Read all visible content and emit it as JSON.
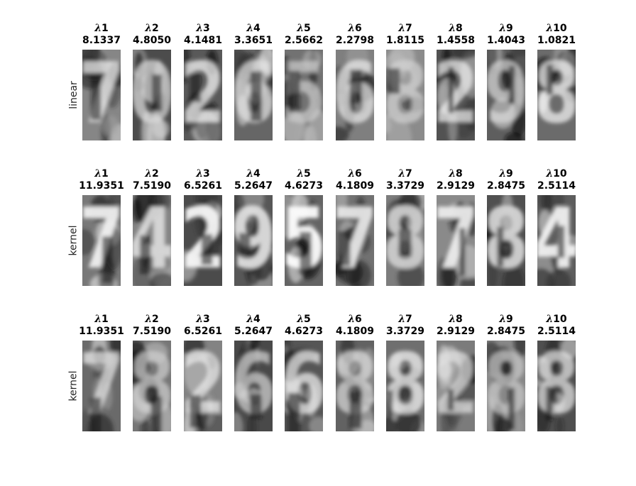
{
  "rows": [
    {
      "label": "linear",
      "panels": [
        {
          "symbol": "λ",
          "index": "1",
          "value": "8.1337",
          "digit": "7"
        },
        {
          "symbol": "λ",
          "index": "2",
          "value": "4.8050",
          "digit": "0"
        },
        {
          "symbol": "λ",
          "index": "3",
          "value": "4.1481",
          "digit": "2"
        },
        {
          "symbol": "λ",
          "index": "4",
          "value": "3.3651",
          "digit": "6"
        },
        {
          "symbol": "λ",
          "index": "5",
          "value": "2.5662",
          "digit": "5"
        },
        {
          "symbol": "λ",
          "index": "6",
          "value": "2.2798",
          "digit": "6"
        },
        {
          "symbol": "λ",
          "index": "7",
          "value": "1.8115",
          "digit": "8"
        },
        {
          "symbol": "λ",
          "index": "8",
          "value": "1.4558",
          "digit": "2"
        },
        {
          "symbol": "λ",
          "index": "9",
          "value": "1.4043",
          "digit": "9"
        },
        {
          "symbol": "λ",
          "index": "10",
          "value": "1.0821",
          "digit": "8"
        }
      ]
    },
    {
      "label": "kernel",
      "panels": [
        {
          "symbol": "λ",
          "index": "1",
          "value": "11.9351",
          "digit": "7"
        },
        {
          "symbol": "λ",
          "index": "2",
          "value": "7.5190",
          "digit": "4"
        },
        {
          "symbol": "λ",
          "index": "3",
          "value": "6.5261",
          "digit": "2"
        },
        {
          "symbol": "λ",
          "index": "4",
          "value": "5.2647",
          "digit": "9"
        },
        {
          "symbol": "λ",
          "index": "5",
          "value": "4.6273",
          "digit": "5"
        },
        {
          "symbol": "λ",
          "index": "6",
          "value": "4.1809",
          "digit": "7"
        },
        {
          "symbol": "λ",
          "index": "7",
          "value": "3.3729",
          "digit": "8"
        },
        {
          "symbol": "λ",
          "index": "8",
          "value": "2.9129",
          "digit": "7"
        },
        {
          "symbol": "λ",
          "index": "9",
          "value": "2.8475",
          "digit": "8"
        },
        {
          "symbol": "λ",
          "index": "10",
          "value": "2.5114",
          "digit": "4"
        }
      ]
    },
    {
      "label": "kernel",
      "panels": [
        {
          "symbol": "λ",
          "index": "1",
          "value": "11.9351",
          "digit": "7"
        },
        {
          "symbol": "λ",
          "index": "2",
          "value": "7.5190",
          "digit": "8"
        },
        {
          "symbol": "λ",
          "index": "3",
          "value": "6.5261",
          "digit": "2"
        },
        {
          "symbol": "λ",
          "index": "4",
          "value": "5.2647",
          "digit": "6"
        },
        {
          "symbol": "λ",
          "index": "5",
          "value": "4.6273",
          "digit": "6"
        },
        {
          "symbol": "λ",
          "index": "6",
          "value": "4.1809",
          "digit": "8"
        },
        {
          "symbol": "λ",
          "index": "7",
          "value": "3.3729",
          "digit": "8"
        },
        {
          "symbol": "λ",
          "index": "8",
          "value": "2.9129",
          "digit": "2"
        },
        {
          "symbol": "λ",
          "index": "9",
          "value": "2.8475",
          "digit": "8"
        },
        {
          "symbol": "λ",
          "index": "10",
          "value": "2.5114",
          "digit": "8"
        }
      ]
    }
  ]
}
